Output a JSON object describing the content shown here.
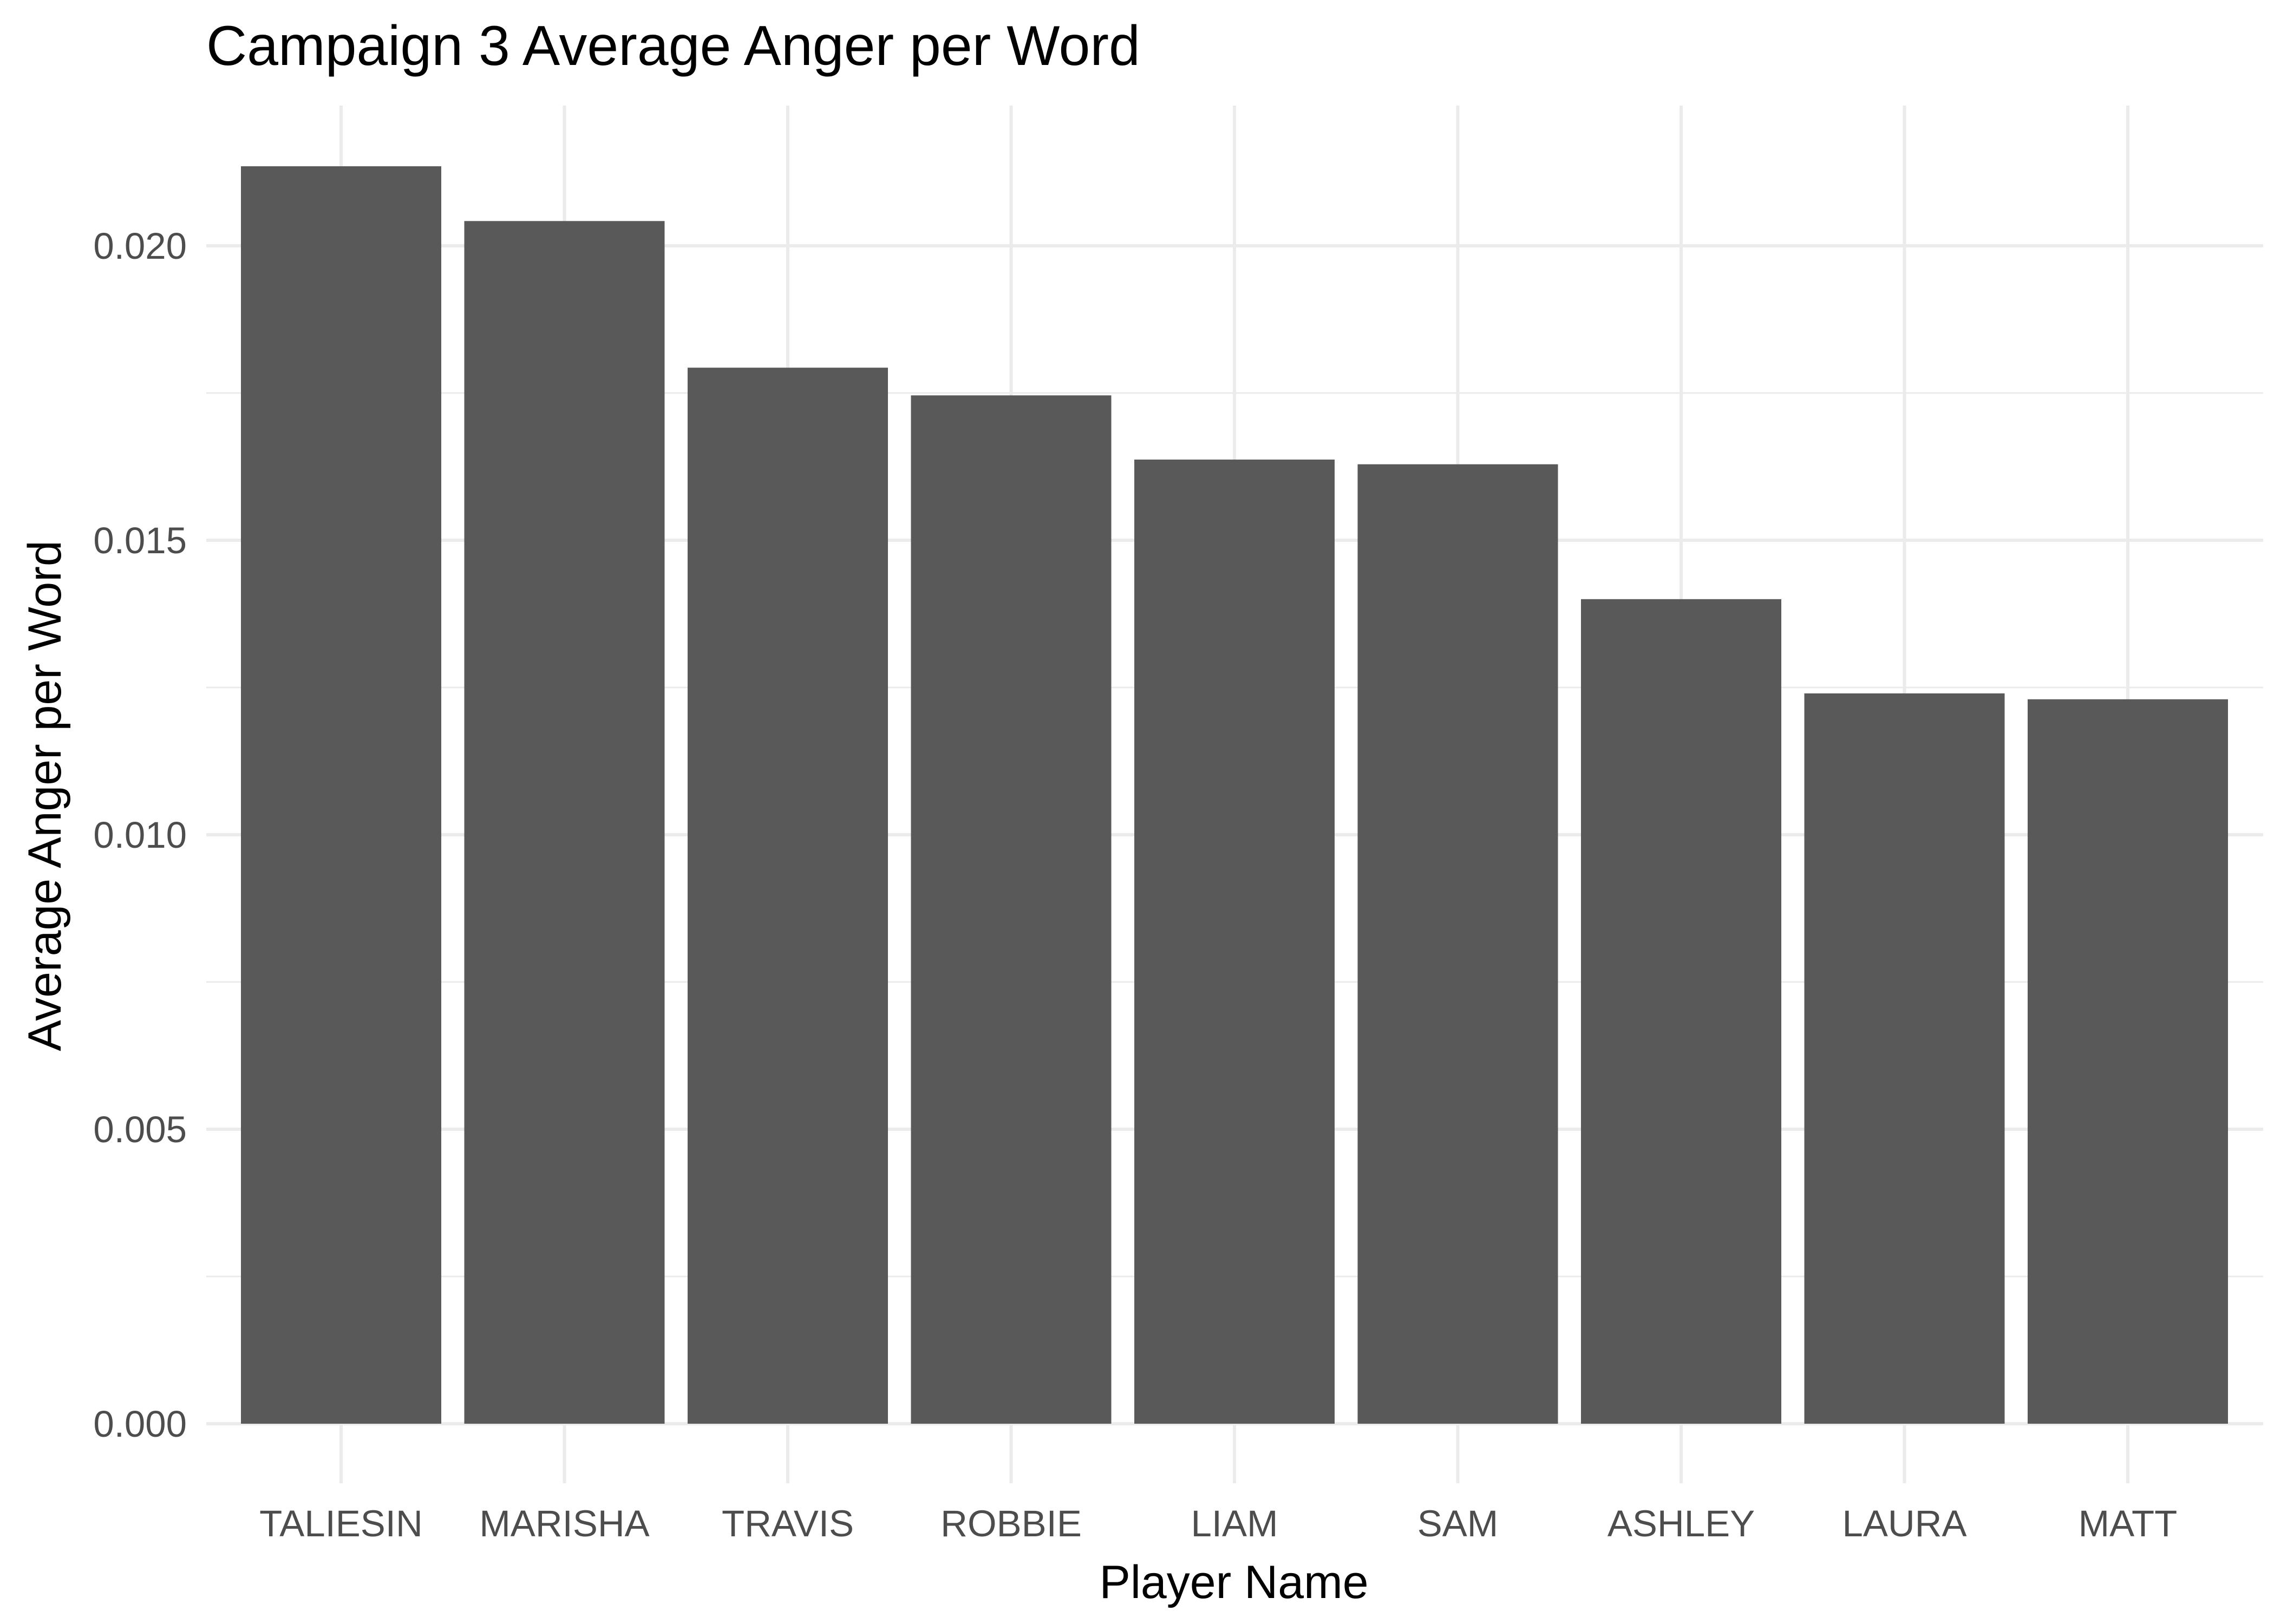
{
  "chart_data": {
    "type": "bar",
    "title": "Campaign 3 Average Anger per Word",
    "xlabel": "Player Name",
    "ylabel": "Average Anger per Word",
    "categories": [
      "TALIESIN",
      "MARISHA",
      "TRAVIS",
      "ROBBIE",
      "LIAM",
      "SAM",
      "ASHLEY",
      "LAURA",
      "MATT"
    ],
    "values": [
      0.02135,
      0.02042,
      0.01793,
      0.01746,
      0.01637,
      0.01629,
      0.014,
      0.0124,
      0.0123
    ],
    "ylim": [
      0,
      0.0222
    ],
    "yticks": [
      "0.000",
      "0.005",
      "0.010",
      "0.015",
      "0.020"
    ],
    "grid": true,
    "legend": "none",
    "bar_color": "#595959",
    "grid_color": "#ebebeb"
  }
}
